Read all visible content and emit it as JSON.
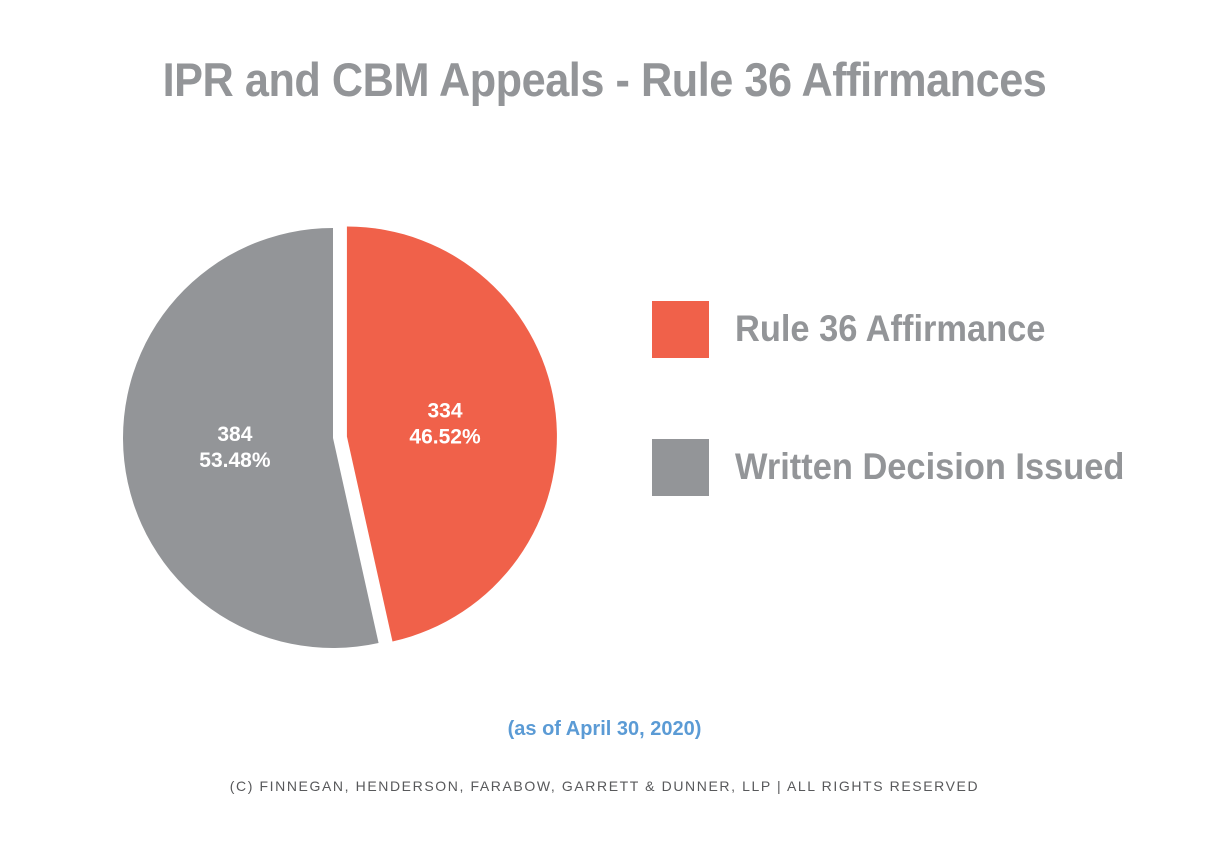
{
  "title": "IPR and CBM Appeals - Rule 36 Affirmances",
  "note": "(as of April 30, 2020)",
  "footer": "(c) finnegan, henderson, farabow, garrett & dunner, llp | all rights reserved",
  "chart_data": {
    "type": "pie",
    "title": "IPR and CBM Appeals - Rule 36 Affirmances",
    "legend_position": "right",
    "slices": [
      {
        "label": "Rule 36 Affirmance",
        "value": 334,
        "percent": "46.52%",
        "color": "#f0614a",
        "exploded": true
      },
      {
        "label": "Written Decision Issued",
        "value": 384,
        "percent": "53.48%",
        "color": "#939598",
        "exploded": false
      }
    ]
  }
}
